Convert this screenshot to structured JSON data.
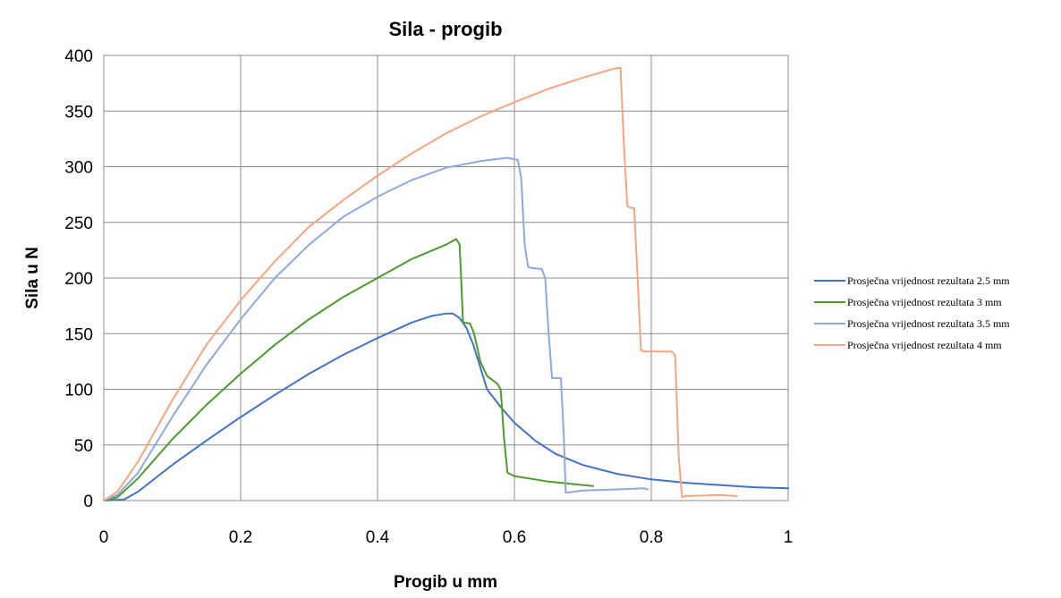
{
  "chart_data": {
    "type": "line",
    "title": "Sila - progib",
    "xlabel": "Progib u mm",
    "ylabel": "Sila u N",
    "xlim": [
      0,
      1
    ],
    "ylim": [
      0,
      400
    ],
    "x_ticks": [
      0,
      0.2,
      0.4,
      0.6,
      0.8,
      1
    ],
    "x_tick_labels": [
      "0",
      "0.2",
      "0.4",
      "0.6",
      "0.8",
      "1"
    ],
    "y_ticks": [
      0,
      50,
      100,
      150,
      200,
      250,
      300,
      350,
      400
    ],
    "y_tick_labels": [
      "0",
      "50",
      "100",
      "150",
      "200",
      "250",
      "300",
      "350",
      "400"
    ],
    "grid": true,
    "legend_position": "right",
    "series": [
      {
        "name": "Prosječna vrijednost rezultata 2.5 mm",
        "color": "#4472C4",
        "x": [
          0.0,
          0.03,
          0.05,
          0.1,
          0.15,
          0.2,
          0.25,
          0.3,
          0.35,
          0.4,
          0.45,
          0.48,
          0.5,
          0.51,
          0.52,
          0.53,
          0.54,
          0.55,
          0.56,
          0.58,
          0.6,
          0.63,
          0.66,
          0.7,
          0.75,
          0.8,
          0.85,
          0.9,
          0.95,
          1.0
        ],
        "y": [
          0,
          1,
          8,
          32,
          54,
          75,
          95,
          114,
          131,
          146,
          160,
          166,
          168,
          168,
          164,
          155,
          140,
          120,
          100,
          84,
          70,
          54,
          42,
          32,
          24,
          19,
          16,
          14,
          12,
          11
        ]
      },
      {
        "name": "Prosječna vrijednost rezultata 3 mm",
        "color": "#4F9A2F",
        "x": [
          0.0,
          0.02,
          0.05,
          0.1,
          0.15,
          0.2,
          0.25,
          0.3,
          0.35,
          0.4,
          0.45,
          0.5,
          0.515,
          0.52,
          0.525,
          0.535,
          0.54,
          0.545,
          0.55,
          0.56,
          0.575,
          0.58,
          0.585,
          0.59,
          0.6,
          0.65,
          0.7,
          0.715
        ],
        "y": [
          0,
          3,
          20,
          55,
          86,
          114,
          140,
          163,
          183,
          200,
          217,
          230,
          235,
          230,
          160,
          159,
          152,
          140,
          125,
          112,
          105,
          100,
          55,
          25,
          22,
          17,
          14,
          13
        ]
      },
      {
        "name": "Prosječna vrijednost rezultata 3.5 mm",
        "color": "#8EA9DB",
        "x": [
          0.0,
          0.02,
          0.05,
          0.1,
          0.15,
          0.2,
          0.25,
          0.3,
          0.35,
          0.4,
          0.45,
          0.5,
          0.55,
          0.59,
          0.605,
          0.61,
          0.615,
          0.62,
          0.625,
          0.64,
          0.645,
          0.65,
          0.655,
          0.668,
          0.672,
          0.675,
          0.7,
          0.75,
          0.79,
          0.795
        ],
        "y": [
          0,
          5,
          25,
          75,
          122,
          163,
          200,
          230,
          255,
          273,
          288,
          299,
          305,
          308,
          306,
          290,
          230,
          210,
          209,
          208,
          200,
          150,
          110,
          110,
          60,
          7,
          9,
          10,
          11,
          10
        ]
      },
      {
        "name": "Prosječna vrijednost rezultata 4 mm",
        "color": "#F4A582",
        "x": [
          0.0,
          0.02,
          0.05,
          0.1,
          0.15,
          0.2,
          0.25,
          0.3,
          0.35,
          0.4,
          0.45,
          0.5,
          0.55,
          0.6,
          0.65,
          0.7,
          0.745,
          0.755,
          0.76,
          0.765,
          0.77,
          0.775,
          0.78,
          0.785,
          0.79,
          0.8,
          0.83,
          0.835,
          0.84,
          0.845,
          0.85,
          0.9,
          0.925
        ],
        "y": [
          0,
          8,
          35,
          90,
          140,
          180,
          215,
          246,
          270,
          292,
          312,
          330,
          345,
          358,
          370,
          380,
          388,
          389,
          320,
          265,
          263,
          263,
          200,
          135,
          134,
          134,
          134,
          130,
          40,
          3,
          4,
          5,
          4
        ]
      }
    ]
  }
}
